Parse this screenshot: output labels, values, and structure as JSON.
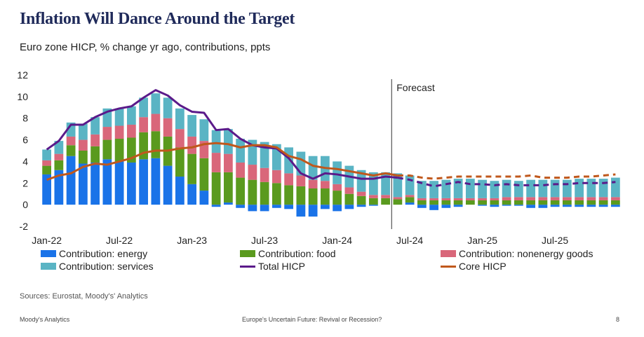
{
  "header": {
    "title": "Inflation Will Dance Around the Target",
    "subtitle": "Euro zone HICP, % change yr ago, contributions, ppts"
  },
  "footer": {
    "source": "Sources: Eurostat, Moody's' Analytics",
    "left": "Moody's Analytics",
    "center": "Europe's Uncertain Future: Revival or Recession?",
    "page": "8"
  },
  "chart_data": {
    "type": "bar",
    "stacked": true,
    "annotation": "Forecast",
    "forecast_start_index": 29,
    "ylim": [
      -2,
      12
    ],
    "yticks": [
      -2,
      0,
      2,
      4,
      6,
      8,
      10,
      12
    ],
    "xtick_labels": [
      {
        "index": 0,
        "label": "Jan-22"
      },
      {
        "index": 6,
        "label": "Jul-22"
      },
      {
        "index": 12,
        "label": "Jan-23"
      },
      {
        "index": 18,
        "label": "Jul-23"
      },
      {
        "index": 24,
        "label": "Jan-24"
      },
      {
        "index": 30,
        "label": "Jul-24"
      },
      {
        "index": 36,
        "label": "Jan-25"
      },
      {
        "index": 42,
        "label": "Jul-25"
      }
    ],
    "months": [
      "Jan-22",
      "Feb-22",
      "Mar-22",
      "Apr-22",
      "May-22",
      "Jun-22",
      "Jul-22",
      "Aug-22",
      "Sep-22",
      "Oct-22",
      "Nov-22",
      "Dec-22",
      "Jan-23",
      "Feb-23",
      "Mar-23",
      "Apr-23",
      "May-23",
      "Jun-23",
      "Jul-23",
      "Aug-23",
      "Sep-23",
      "Oct-23",
      "Nov-23",
      "Dec-23",
      "Jan-24",
      "Feb-24",
      "Mar-24",
      "Apr-24",
      "May-24",
      "Jun-24",
      "Jul-24",
      "Aug-24",
      "Sep-24",
      "Oct-24",
      "Nov-24",
      "Dec-24",
      "Jan-25",
      "Feb-25",
      "Mar-25",
      "Apr-25",
      "May-25",
      "Jun-25",
      "Jul-25",
      "Aug-25",
      "Sep-25",
      "Oct-25",
      "Nov-25",
      "Dec-25"
    ],
    "series": [
      {
        "name": "Contribution: energy",
        "kind": "bar",
        "color": "#1a73e8",
        "values": [
          2.8,
          3.2,
          4.5,
          3.8,
          3.9,
          4.2,
          4.0,
          3.9,
          4.2,
          4.3,
          3.6,
          2.6,
          1.9,
          1.3,
          -0.2,
          0.2,
          -0.3,
          -0.6,
          -0.6,
          -0.3,
          -0.4,
          -1.1,
          -1.1,
          -0.4,
          -0.6,
          -0.4,
          -0.2,
          -0.1,
          0.0,
          0.0,
          0.2,
          -0.3,
          -0.5,
          -0.3,
          -0.2,
          0.0,
          -0.1,
          -0.2,
          -0.1,
          -0.1,
          -0.3,
          -0.3,
          -0.2,
          -0.2,
          -0.2,
          -0.2,
          -0.2,
          -0.2
        ]
      },
      {
        "name": "Contribution: food",
        "kind": "bar",
        "color": "#5a9a1e",
        "values": [
          0.8,
          0.9,
          1.0,
          1.2,
          1.5,
          1.8,
          2.1,
          2.3,
          2.5,
          2.5,
          2.7,
          2.7,
          2.8,
          3.0,
          3.0,
          2.8,
          2.5,
          2.3,
          2.1,
          2.0,
          1.8,
          1.7,
          1.5,
          1.5,
          1.3,
          1.0,
          0.8,
          0.6,
          0.6,
          0.5,
          0.5,
          0.4,
          0.4,
          0.4,
          0.4,
          0.4,
          0.4,
          0.4,
          0.4,
          0.4,
          0.4,
          0.4,
          0.4,
          0.4,
          0.4,
          0.4,
          0.4,
          0.4
        ]
      },
      {
        "name": "Contribution: nonenergy goods",
        "kind": "bar",
        "color": "#d9677a",
        "values": [
          0.5,
          0.6,
          0.8,
          1.0,
          1.1,
          1.2,
          1.2,
          1.2,
          1.4,
          1.6,
          1.7,
          1.7,
          1.6,
          1.6,
          1.8,
          1.7,
          1.4,
          1.4,
          1.3,
          1.2,
          1.1,
          1.0,
          0.8,
          0.7,
          0.6,
          0.6,
          0.4,
          0.3,
          0.3,
          0.2,
          0.2,
          0.2,
          0.2,
          0.2,
          0.2,
          0.2,
          0.2,
          0.2,
          0.3,
          0.3,
          0.3,
          0.3,
          0.3,
          0.3,
          0.3,
          0.3,
          0.3,
          0.3
        ]
      },
      {
        "name": "Contribution: services",
        "kind": "bar",
        "color": "#5ab4c4",
        "values": [
          1.0,
          1.2,
          1.3,
          1.5,
          1.6,
          1.7,
          1.6,
          1.7,
          1.8,
          1.9,
          1.9,
          1.9,
          2.0,
          2.0,
          2.1,
          2.3,
          2.2,
          2.3,
          2.4,
          2.4,
          2.4,
          2.2,
          2.2,
          2.3,
          2.1,
          2.0,
          2.0,
          2.1,
          2.1,
          2.2,
          1.8,
          1.6,
          1.6,
          1.7,
          1.8,
          1.8,
          1.7,
          1.6,
          1.6,
          1.5,
          1.6,
          1.6,
          1.6,
          1.6,
          1.7,
          1.7,
          1.7,
          1.8
        ]
      },
      {
        "name": "Total HICP",
        "kind": "line",
        "color": "#5b1a8a",
        "values": [
          5.1,
          5.9,
          7.4,
          7.4,
          8.1,
          8.6,
          8.9,
          9.1,
          9.9,
          10.6,
          10.1,
          9.2,
          8.6,
          8.5,
          6.9,
          7.0,
          6.1,
          5.5,
          5.3,
          5.2,
          4.3,
          2.9,
          2.4,
          2.9,
          2.8,
          2.6,
          2.4,
          2.4,
          2.6,
          2.5,
          2.3,
          2.0,
          1.7,
          1.9,
          2.1,
          1.9,
          1.9,
          1.8,
          1.9,
          1.8,
          1.8,
          1.8,
          1.9,
          1.9,
          2.0,
          2.0,
          2.0,
          2.1
        ]
      },
      {
        "name": "Core HICP",
        "kind": "line",
        "color": "#c0581c",
        "values": [
          2.3,
          2.7,
          2.9,
          3.5,
          3.8,
          3.7,
          4.0,
          4.3,
          4.8,
          5.0,
          5.0,
          5.2,
          5.3,
          5.6,
          5.7,
          5.6,
          5.3,
          5.5,
          5.5,
          5.3,
          4.5,
          4.2,
          3.6,
          3.4,
          3.3,
          3.1,
          2.9,
          2.7,
          2.9,
          2.7,
          2.7,
          2.5,
          2.4,
          2.5,
          2.6,
          2.6,
          2.6,
          2.6,
          2.6,
          2.6,
          2.7,
          2.5,
          2.5,
          2.5,
          2.6,
          2.6,
          2.7,
          2.8
        ]
      }
    ]
  }
}
